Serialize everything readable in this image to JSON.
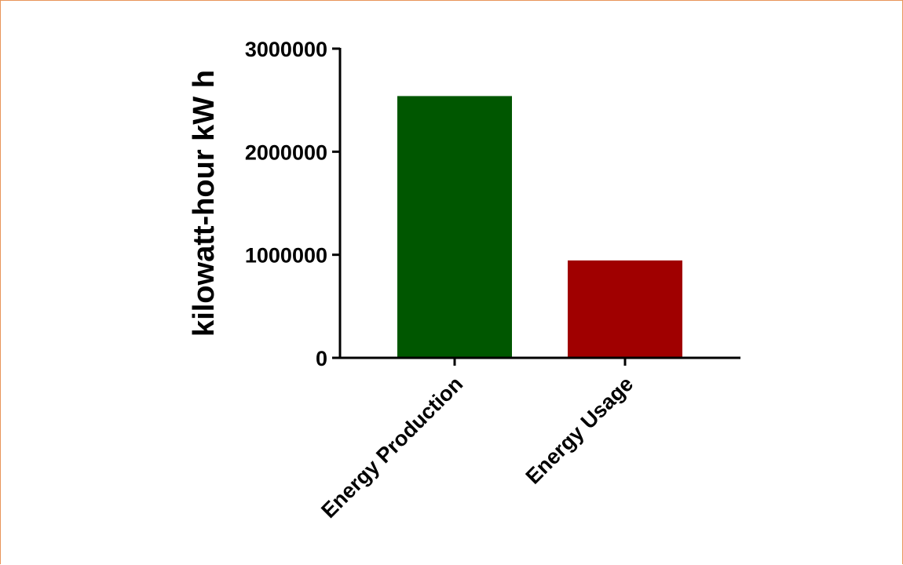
{
  "chart_data": {
    "type": "bar",
    "categories": [
      "Energy Production",
      "Energy Usage"
    ],
    "values": [
      2540000,
      945000
    ],
    "colors": [
      "#005700",
      "#a00000"
    ],
    "title": "",
    "xlabel": "",
    "ylabel": "kilowatt-hour kW h",
    "ylim": [
      0,
      3000000
    ],
    "yticks": [
      0,
      1000000,
      2000000,
      3000000
    ],
    "ytick_labels": [
      "0",
      "1000000",
      "2000000",
      "3000000"
    ],
    "grid": false,
    "legend": "none"
  },
  "colors": {
    "frame_border": "#e8955a",
    "axis": "#000000"
  }
}
